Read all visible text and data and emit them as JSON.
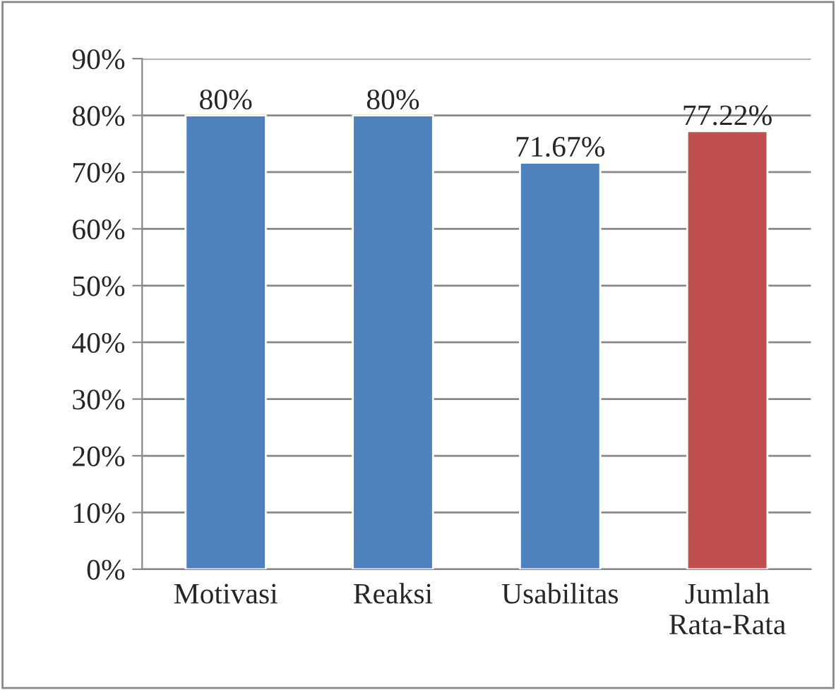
{
  "chart_data": {
    "type": "bar",
    "categories": [
      "Motivasi",
      "Reaksi",
      "Usabilitas",
      "Jumlah\nRata-Rata"
    ],
    "values": [
      80,
      80,
      71.67,
      77.22
    ],
    "colors": [
      "#4f81bd",
      "#4f81bd",
      "#4f81bd",
      "#c0504d"
    ],
    "value_labels": [
      "80%",
      "80%",
      "71.67%",
      "77.22%"
    ],
    "ylim": [
      0,
      90
    ],
    "yticks": [
      {
        "value": 0,
        "label": "0%"
      },
      {
        "value": 10,
        "label": "10%"
      },
      {
        "value": 20,
        "label": "20%"
      },
      {
        "value": 30,
        "label": "30%"
      },
      {
        "value": 40,
        "label": "40%"
      },
      {
        "value": 50,
        "label": "50%"
      },
      {
        "value": 60,
        "label": "60%"
      },
      {
        "value": 70,
        "label": "70%"
      },
      {
        "value": 80,
        "label": "80%"
      },
      {
        "value": 90,
        "label": "90%"
      }
    ],
    "grid": "y",
    "legend": false
  }
}
